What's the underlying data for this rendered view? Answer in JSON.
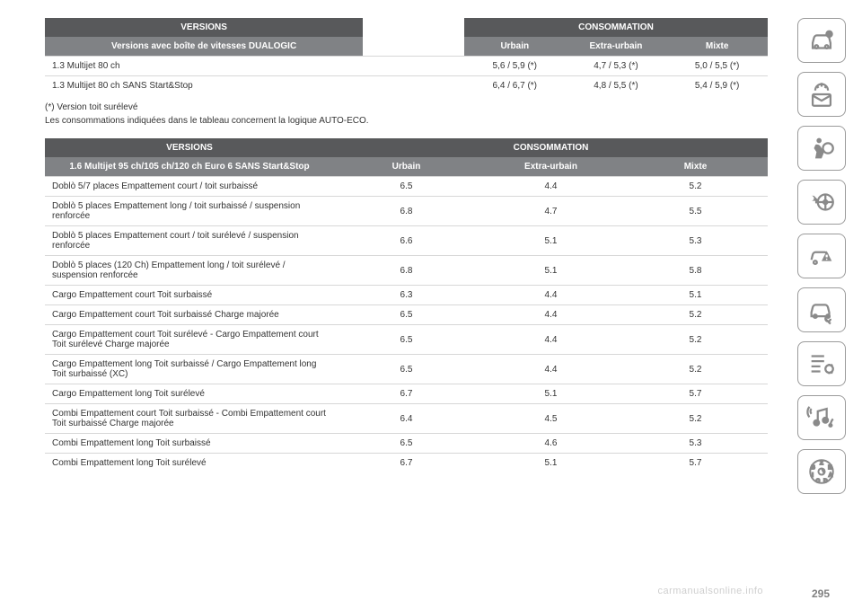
{
  "table1": {
    "h_versions": "VERSIONS",
    "h_cons": "CONSOMMATION",
    "h_sub": "Versions avec boîte de vitesses DUALOGIC",
    "h_urb": "Urbain",
    "h_ext": "Extra-urbain",
    "h_mix": "Mixte",
    "rows": [
      {
        "label": "1.3 Multijet 80 ch",
        "urb": "5,6 / 5,9 (*)",
        "ext": "4,7 / 5,3 (*)",
        "mix": "5,0 / 5,5 (*)"
      },
      {
        "label": "1.3 Multijet 80 ch SANS Start&Stop",
        "urb": "6,4 / 6,7 (*)",
        "ext": "4,8 / 5,5 (*)",
        "mix": "5,4 / 5,9 (*)"
      }
    ],
    "note_star": "(*) Version toit surélevé",
    "note_auto": "Les consommations indiquées dans le tableau concernent la logique AUTO-ECO."
  },
  "table2": {
    "h_versions": "VERSIONS",
    "h_cons": "CONSOMMATION",
    "h_sub": "1.6 Multijet 95 ch/105 ch/120 ch Euro 6 SANS Start&Stop",
    "h_urb": "Urbain",
    "h_ext": "Extra-urbain",
    "h_mix": "Mixte",
    "rows": [
      {
        "label": "Doblò 5/7 places Empattement court / toit surbaissé",
        "urb": "6.5",
        "ext": "4.4",
        "mix": "5.2"
      },
      {
        "label": "Doblò 5 places Empattement long / toit surbaissé / suspension renforcée",
        "urb": "6.8",
        "ext": "4.7",
        "mix": "5.5"
      },
      {
        "label": "Doblò 5 places Empattement court / toit surélevé / suspension renforcée",
        "urb": "6.6",
        "ext": "5.1",
        "mix": "5.3"
      },
      {
        "label": "Doblò 5 places (120 Ch) Empattement long / toit surélevé / suspension renforcée",
        "urb": "6.8",
        "ext": "5.1",
        "mix": "5.8"
      },
      {
        "label": "Cargo Empattement court Toit surbaissé",
        "urb": "6.3",
        "ext": "4.4",
        "mix": "5.1"
      },
      {
        "label": "Cargo Empattement court Toit surbaissé Charge majorée",
        "urb": "6.5",
        "ext": "4.4",
        "mix": "5.2"
      },
      {
        "label": "Cargo Empattement court Toit surélevé - Cargo Empattement court Toit surélevé Charge majorée",
        "urb": "6.5",
        "ext": "4.4",
        "mix": "5.2"
      },
      {
        "label": "Cargo Empattement long Toit surbaissé / Cargo Empattement long Toit surbaissé (XC)",
        "urb": "6.5",
        "ext": "4.4",
        "mix": "5.2"
      },
      {
        "label": "Cargo Empattement long Toit surélevé",
        "urb": "6.7",
        "ext": "5.1",
        "mix": "5.7"
      },
      {
        "label": "Combi Empattement court Toit surbaissé - Combi Empattement court Toit surbaissé Charge majorée",
        "urb": "6.4",
        "ext": "4.5",
        "mix": "5.2"
      },
      {
        "label": "Combi Empattement long Toit surbaissé",
        "urb": "6.5",
        "ext": "4.6",
        "mix": "5.3"
      },
      {
        "label": "Combi Empattement long Toit surélevé",
        "urb": "6.7",
        "ext": "5.1",
        "mix": "5.7"
      }
    ]
  },
  "watermark": "carmanualsonline.info",
  "pagenum": "295",
  "colors": {
    "hdr_dark": "#58595b",
    "hdr_mid": "#808285",
    "border": "#d7d7d7",
    "icon": "#9b9b9b"
  }
}
